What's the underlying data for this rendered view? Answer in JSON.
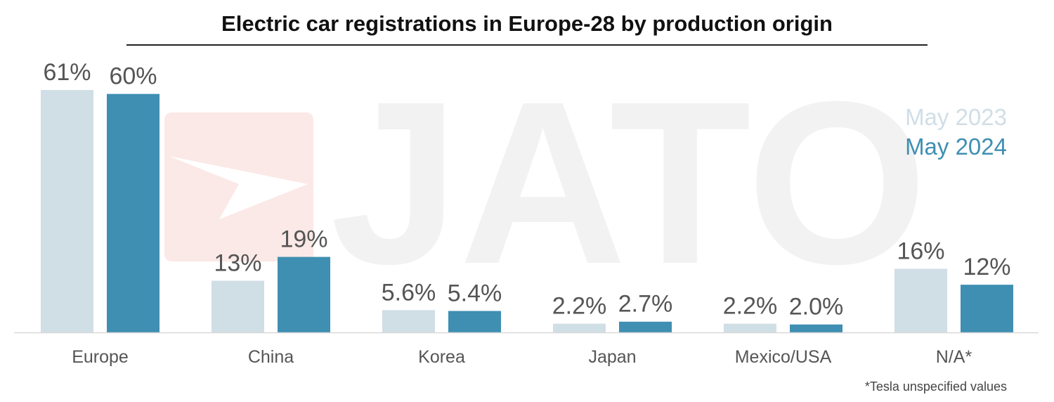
{
  "colors": {
    "may_2023": "#d0dee6",
    "may_2024": "#3f8fb2",
    "watermark_logo": "#fbe9e7",
    "watermark_text": "#f3f3f3"
  },
  "watermark": {
    "text": "JATO",
    "icon": "jato-logo-icon"
  },
  "chart_data": {
    "type": "bar",
    "title": "Electric car registrations in Europe-28 by production origin",
    "categories": [
      "Europe",
      "China",
      "Korea",
      "Japan",
      "Mexico/USA",
      "N/A*"
    ],
    "series": [
      {
        "name": "May 2023",
        "values": [
          61,
          13,
          5.6,
          2.2,
          2.2,
          16
        ],
        "labels": [
          "61%",
          "13%",
          "5.6%",
          "2.2%",
          "2.2%",
          "16%"
        ]
      },
      {
        "name": "May 2024",
        "values": [
          60,
          19,
          5.4,
          2.7,
          2.0,
          12
        ],
        "labels": [
          "60%",
          "19%",
          "5.4%",
          "2.7%",
          "2.0%",
          "12%"
        ]
      }
    ],
    "unit": "%",
    "ylim": [
      0,
      61
    ],
    "grid": false,
    "legend_position": "top-right",
    "footnote": "*Tesla unspecified values"
  }
}
